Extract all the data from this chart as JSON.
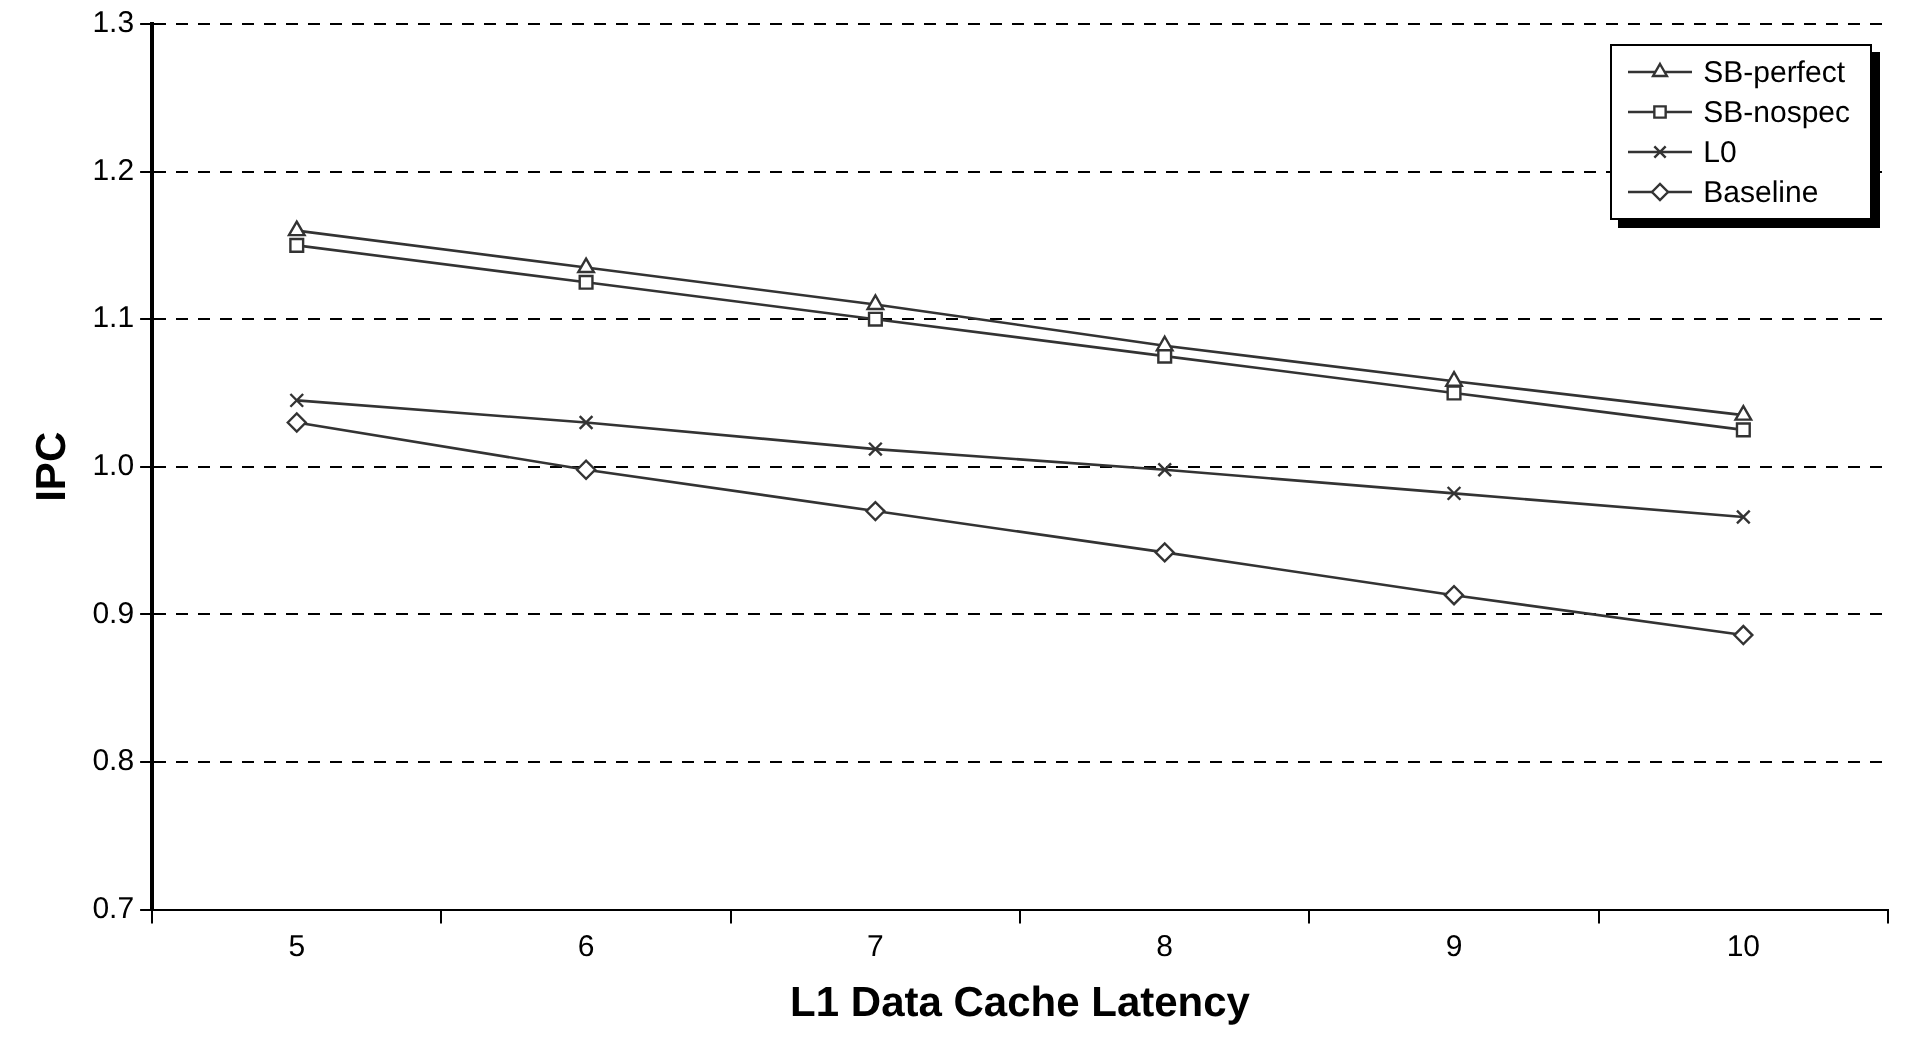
{
  "chart_data": {
    "type": "line",
    "xlabel": "L1 Data Cache Latency",
    "ylabel": "IPC",
    "categories": [
      "5",
      "6",
      "7",
      "8",
      "9",
      "10"
    ],
    "series": [
      {
        "name": "SB-perfect",
        "color": "#333333",
        "marker": "triangle",
        "values": [
          1.16,
          1.135,
          1.11,
          1.082,
          1.058,
          1.035
        ]
      },
      {
        "name": "SB-nospec",
        "color": "#333333",
        "marker": "square",
        "values": [
          1.15,
          1.125,
          1.1,
          1.075,
          1.05,
          1.025
        ]
      },
      {
        "name": "L0",
        "color": "#333333",
        "marker": "cross",
        "values": [
          1.045,
          1.03,
          1.012,
          0.998,
          0.982,
          0.966
        ]
      },
      {
        "name": "Baseline",
        "color": "#333333",
        "marker": "diamond",
        "values": [
          1.03,
          0.998,
          0.97,
          0.942,
          0.913,
          0.886
        ]
      }
    ],
    "ylim": [
      0.7,
      1.3
    ],
    "yticks": [
      {
        "value": 0.7,
        "label": "0.7"
      },
      {
        "value": 0.8,
        "label": "0.8"
      },
      {
        "value": 0.9,
        "label": "0.9"
      },
      {
        "value": 1.0,
        "label": "1.0"
      },
      {
        "value": 1.1,
        "label": "1.1"
      },
      {
        "value": 1.2,
        "label": "1.2"
      },
      {
        "value": 1.3,
        "label": "1.3"
      }
    ],
    "grid": "y",
    "legend": "top right",
    "line_style": "solid"
  }
}
